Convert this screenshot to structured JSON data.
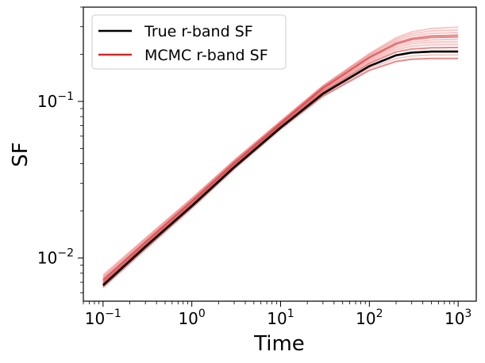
{
  "chart_data": {
    "type": "line",
    "xscale": "log",
    "yscale": "log",
    "xlabel": "Time",
    "ylabel": "SF",
    "xlim": [
      0.06,
      1600
    ],
    "ylim": [
      0.0053,
      0.4
    ],
    "x_ticks": [
      {
        "value": 0.1,
        "base": "10",
        "exp": "−1"
      },
      {
        "value": 1,
        "base": "10",
        "exp": "0"
      },
      {
        "value": 10,
        "base": "10",
        "exp": "1"
      },
      {
        "value": 100,
        "base": "10",
        "exp": "2"
      },
      {
        "value": 1000,
        "base": "10",
        "exp": "3"
      }
    ],
    "y_ticks": [
      {
        "value": 0.01,
        "base": "10",
        "exp": "−2"
      },
      {
        "value": 0.1,
        "base": "10",
        "exp": "−1"
      }
    ],
    "legend_position": "upper-left",
    "legend": [
      {
        "label": "True r-band SF",
        "color": "#000000"
      },
      {
        "label": "MCMC r-band SF",
        "color": "#d62728"
      }
    ],
    "series": [
      {
        "name": "True r-band SF",
        "color": "#000000",
        "x": [
          0.1,
          0.3,
          1,
          3,
          10,
          30,
          100,
          200,
          300,
          500,
          1000
        ],
        "y": [
          0.0067,
          0.0118,
          0.0215,
          0.038,
          0.068,
          0.112,
          0.168,
          0.197,
          0.205,
          0.208,
          0.208
        ]
      }
    ],
    "mcmc_series": [
      {
        "color": "#d62728",
        "x": [
          0.1,
          0.3,
          1,
          3,
          10,
          30,
          100,
          200,
          300,
          500,
          1000
        ],
        "y": [
          0.0072,
          0.0126,
          0.0229,
          0.0403,
          0.072,
          0.121,
          0.19,
          0.232,
          0.248,
          0.256,
          0.258
        ]
      },
      {
        "color": "#d62728",
        "x": [
          0.1,
          0.3,
          1,
          3,
          10,
          30,
          100,
          200,
          300,
          500,
          1000
        ],
        "y": [
          0.007,
          0.0123,
          0.0224,
          0.0395,
          0.0705,
          0.118,
          0.183,
          0.22,
          0.233,
          0.239,
          0.24
        ]
      },
      {
        "color": "#d62728",
        "x": [
          0.1,
          0.3,
          1,
          3,
          10,
          30,
          100,
          200,
          300,
          500,
          1000
        ],
        "y": [
          0.0075,
          0.013,
          0.0236,
          0.0414,
          0.0738,
          0.124,
          0.196,
          0.243,
          0.262,
          0.272,
          0.275
        ]
      },
      {
        "color": "#d62728",
        "x": [
          0.1,
          0.3,
          1,
          3,
          10,
          30,
          100,
          200,
          300,
          500,
          1000
        ],
        "y": [
          0.0069,
          0.0121,
          0.022,
          0.0388,
          0.0695,
          0.115,
          0.175,
          0.207,
          0.216,
          0.22,
          0.221
        ]
      },
      {
        "color": "#d62728",
        "x": [
          0.1,
          0.3,
          1,
          3,
          10,
          30,
          100,
          200,
          300,
          500,
          1000
        ],
        "y": [
          0.0078,
          0.0134,
          0.0241,
          0.0421,
          0.0748,
          0.126,
          0.202,
          0.255,
          0.278,
          0.292,
          0.298
        ]
      },
      {
        "color": "#d62728",
        "x": [
          0.1,
          0.3,
          1,
          3,
          10,
          30,
          100,
          200,
          300,
          500,
          1000
        ],
        "y": [
          0.0068,
          0.0119,
          0.0217,
          0.0383,
          0.0686,
          0.113,
          0.17,
          0.198,
          0.206,
          0.209,
          0.21
        ]
      },
      {
        "color": "#d62728",
        "x": [
          0.1,
          0.3,
          1,
          3,
          10,
          30,
          100,
          200,
          300,
          500,
          1000
        ],
        "y": [
          0.0073,
          0.0127,
          0.0231,
          0.0406,
          0.0725,
          0.122,
          0.192,
          0.236,
          0.253,
          0.262,
          0.265
        ]
      },
      {
        "color": "#d62728",
        "x": [
          0.1,
          0.3,
          1,
          3,
          10,
          30,
          100,
          200,
          300,
          500,
          1000
        ],
        "y": [
          0.0066,
          0.0116,
          0.0212,
          0.0376,
          0.0675,
          0.11,
          0.163,
          0.188,
          0.195,
          0.198,
          0.198
        ]
      },
      {
        "color": "#d62728",
        "x": [
          0.1,
          0.3,
          1,
          3,
          10,
          30,
          100,
          200,
          300,
          500,
          1000
        ],
        "y": [
          0.0071,
          0.0124,
          0.0226,
          0.0398,
          0.0712,
          0.119,
          0.186,
          0.226,
          0.24,
          0.247,
          0.249
        ]
      },
      {
        "color": "#d62728",
        "x": [
          0.1,
          0.3,
          1,
          3,
          10,
          30,
          100,
          200,
          300,
          500,
          1000
        ],
        "y": [
          0.0065,
          0.0114,
          0.0209,
          0.0371,
          0.0667,
          0.108,
          0.158,
          0.18,
          0.186,
          0.188,
          0.188
        ]
      },
      {
        "color": "#d62728",
        "x": [
          0.1,
          0.3,
          1,
          3,
          10,
          30,
          100,
          200,
          300,
          500,
          1000
        ],
        "y": [
          0.0076,
          0.0132,
          0.0238,
          0.0417,
          0.0742,
          0.125,
          0.199,
          0.249,
          0.27,
          0.282,
          0.286
        ]
      },
      {
        "color": "#d62728",
        "x": [
          0.1,
          0.3,
          1,
          3,
          10,
          30,
          100,
          200,
          300,
          500,
          1000
        ],
        "y": [
          0.007,
          0.0122,
          0.0222,
          0.0392,
          0.07,
          0.117,
          0.179,
          0.214,
          0.225,
          0.23,
          0.231
        ]
      }
    ]
  }
}
